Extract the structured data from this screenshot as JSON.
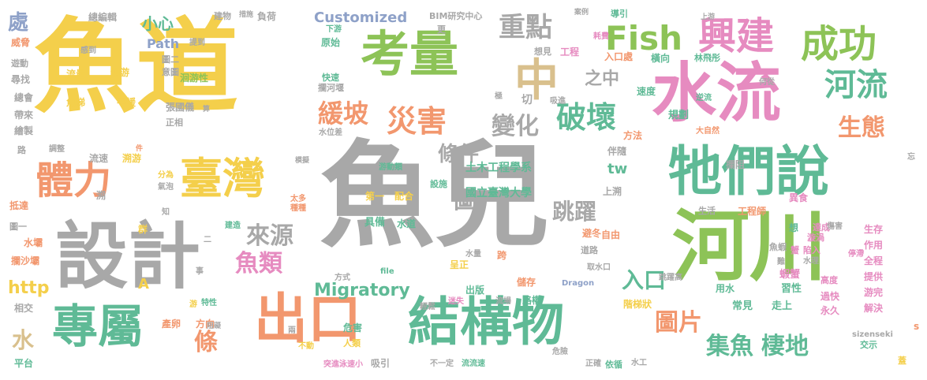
{
  "palette": {
    "gold": "#f4cf4b",
    "green": "#8dc357",
    "teal": "#5fba96",
    "pink": "#e68bc0",
    "salmon": "#f2976e",
    "gray": "#a8a8a8",
    "blue": "#8ea1c8",
    "tan": "#d9c08d"
  },
  "words": [
    "魚道",
    "魚兒",
    "水流",
    "考量",
    "設計",
    "牠們說",
    "河川",
    "結構物",
    "專屬",
    "出口",
    "臺灣",
    "體力",
    "中",
    "興建",
    "成功",
    "Fish",
    "重點",
    "破壞",
    "河流",
    "生態",
    "災害",
    "緩坡",
    "變化",
    "條件",
    "來源",
    "魚類",
    "跳躍",
    "圖",
    "入口",
    "圖片",
    "集魚",
    "棲地",
    "之中",
    "小心",
    "處",
    "水",
    "條",
    "http",
    "Migratory",
    "Customized",
    "BIM研究中心",
    "土木工程學系",
    "國立臺灣大學",
    "tw",
    "Path",
    "流量",
    "迴游",
    "魚梯",
    "平緩",
    "攔河堰",
    "洄游性",
    "張國儀",
    "正相",
    "意圖",
    "切",
    "吸進",
    "極",
    "橫向",
    "規劃",
    "速度",
    "林飛彤",
    "逆流",
    "方法",
    "大自然",
    "伴隨",
    "攔阻",
    "異食",
    "達成",
    "漩渦",
    "陷入",
    "生存",
    "作用",
    "全程",
    "提供",
    "游完",
    "解決",
    "過快",
    "永久",
    "高度",
    "蝦蟹",
    "習性",
    "走上",
    "常見",
    "用水",
    "階梯狀",
    "避冬",
    "儲存",
    "路權",
    "流場",
    "出版",
    "呈正",
    "水道",
    "具備",
    "第一",
    "配合",
    "設施",
    "危害",
    "人類",
    "兩",
    "不動",
    "吸引",
    "突進泳速小",
    "不一定",
    "流流速",
    "依循",
    "危險",
    "正確",
    "水工",
    "交示",
    "蓋",
    "威脅",
    "遊動",
    "尋找",
    "總會",
    "帶來",
    "繪製",
    "路",
    "調整",
    "流速",
    "溯游",
    "水位差",
    "抵達",
    "圖一",
    "水壩",
    "攔沙壩",
    "相交",
    "平台",
    "游",
    "產卵",
    "方向",
    "特性",
    "阻礙",
    "事",
    "氣泡",
    "分為",
    "太多",
    "種種",
    "群",
    "知",
    "建造",
    "A",
    "模擬",
    "游動類",
    "上溯",
    "溯",
    "上游",
    "下游",
    "原始",
    "快速",
    "入口處",
    "導引",
    "案例",
    "耗費",
    "工程",
    "想見",
    "更",
    "負荷",
    "措施",
    "建物",
    "總編輯",
    "感到",
    "提到",
    "何從",
    "忘",
    "傷害",
    "停滯",
    "水理",
    "魚蝦",
    "蟹",
    "想",
    "難",
    "工程師",
    "生活",
    "自由",
    "道路",
    "跨",
    "輕鬆",
    "迷失",
    "方式",
    "file",
    "Dragon",
    "取水口",
    "跳躍高",
    "水量",
    "sizenseki",
    "s",
    "件",
    "算",
    "二",
    "圖二"
  ]
}
